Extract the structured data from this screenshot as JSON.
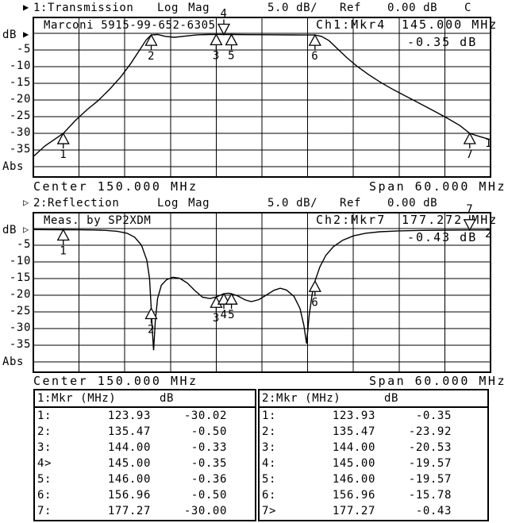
{
  "colors": {
    "foreground": "#000000",
    "background": "#ffffff"
  },
  "channel1": {
    "indicator": "▶",
    "title": "1:Transmission",
    "format": "Log Mag",
    "scale": "5.0 dB/",
    "ref_label": "Ref",
    "ref_value": "0.00 dB",
    "cal_flag": "C",
    "device_id": "Marconi 5915-99-652-6305",
    "readout_label": "Ch1:Mkr4",
    "readout_freq": "145.000 MHz",
    "readout_db": "-0.35 dB",
    "axis_unit": "dB",
    "axis_bottom": "Abs"
  },
  "channel2": {
    "indicator": "▷",
    "title": "2:Reflection",
    "format": "Log Mag",
    "scale": "5.0 dB/",
    "ref_label": "Ref",
    "ref_value": "0.00 dB",
    "device_id": "Meas. by SP2XDM",
    "readout_label": "Ch2:Mkr7",
    "readout_freq": "177.272 MHz",
    "readout_db": "-0.43 dB",
    "axis_unit": "dB",
    "axis_bottom": "Abs"
  },
  "frequency_row": {
    "center": "Center 150.000 MHz",
    "span": "Span 60.000 MHz"
  },
  "axis_ticks": [
    "-5",
    "-10",
    "-15",
    "-20",
    "-25",
    "-30",
    "-35"
  ],
  "chart_data": [
    {
      "type": "line",
      "name": "transmission",
      "title": "1:Transmission",
      "ylabel": "dB",
      "format": "Log Mag",
      "y_db_per_div": 5,
      "ref_db": 0,
      "ylim": [
        -40,
        0
      ],
      "x_mhz_range": [
        120,
        180
      ],
      "center_mhz": 150,
      "span_mhz": 60,
      "grid": true,
      "trace_number": "1",
      "trace": [
        [
          120,
          -37
        ],
        [
          121.5,
          -33.8
        ],
        [
          123.93,
          -30.02
        ],
        [
          125.5,
          -26.2
        ],
        [
          127,
          -23
        ],
        [
          128.5,
          -20.2
        ],
        [
          130,
          -16.8
        ],
        [
          131.5,
          -13
        ],
        [
          132.8,
          -9
        ],
        [
          134,
          -4.8
        ],
        [
          134.8,
          -2
        ],
        [
          135.47,
          -0.5
        ],
        [
          136.3,
          -0.35
        ],
        [
          137.3,
          -0.9
        ],
        [
          138.5,
          -1.2
        ],
        [
          140,
          -0.8
        ],
        [
          141.5,
          -0.45
        ],
        [
          143,
          -0.35
        ],
        [
          144,
          -0.33
        ],
        [
          145,
          -0.35
        ],
        [
          146,
          -0.36
        ],
        [
          148,
          -0.4
        ],
        [
          151,
          -0.44
        ],
        [
          154,
          -0.47
        ],
        [
          156.96,
          -0.5
        ],
        [
          157.8,
          -0.9
        ],
        [
          158.8,
          -2.2
        ],
        [
          160,
          -4.8
        ],
        [
          161.2,
          -7.4
        ],
        [
          162.5,
          -9.9
        ],
        [
          164,
          -12.4
        ],
        [
          165.5,
          -14.6
        ],
        [
          167,
          -16.6
        ],
        [
          168.5,
          -18.4
        ],
        [
          170,
          -20.2
        ],
        [
          171.5,
          -22
        ],
        [
          173,
          -23.8
        ],
        [
          174.5,
          -25.7
        ],
        [
          176,
          -27.7
        ],
        [
          177.27,
          -30
        ],
        [
          178.5,
          -30.9
        ],
        [
          180,
          -31.9
        ]
      ],
      "markers": [
        {
          "n": "1",
          "mhz": 123.93,
          "db": -30.02,
          "active": false
        },
        {
          "n": "2",
          "mhz": 135.47,
          "db": -0.5,
          "active": false
        },
        {
          "n": "3",
          "mhz": 144.0,
          "db": -0.33,
          "active": false
        },
        {
          "n": "4",
          "mhz": 145.0,
          "db": -0.35,
          "active": true
        },
        {
          "n": "5",
          "mhz": 146.0,
          "db": -0.36,
          "active": false
        },
        {
          "n": "6",
          "mhz": 156.96,
          "db": -0.5,
          "active": false
        },
        {
          "n": "7",
          "mhz": 177.27,
          "db": -30.0,
          "active": false
        }
      ]
    },
    {
      "type": "line",
      "name": "reflection",
      "title": "2:Reflection",
      "ylabel": "dB",
      "format": "Log Mag",
      "y_db_per_div": 5,
      "ref_db": 0,
      "ylim": [
        -40,
        0
      ],
      "x_mhz_range": [
        120,
        180
      ],
      "center_mhz": 150,
      "span_mhz": 60,
      "grid": true,
      "trace_number": "2",
      "trace": [
        [
          120,
          -0.32
        ],
        [
          122,
          -0.33
        ],
        [
          123.93,
          -0.35
        ],
        [
          126,
          -0.38
        ],
        [
          128,
          -0.44
        ],
        [
          129.5,
          -0.55
        ],
        [
          131,
          -0.8
        ],
        [
          132.3,
          -1.4
        ],
        [
          133.3,
          -2.6
        ],
        [
          134.2,
          -5
        ],
        [
          134.9,
          -9.5
        ],
        [
          135.25,
          -15
        ],
        [
          135.47,
          -23.92
        ],
        [
          135.6,
          -30
        ],
        [
          135.78,
          -36.5
        ],
        [
          136,
          -28
        ],
        [
          136.3,
          -21
        ],
        [
          136.8,
          -17
        ],
        [
          137.5,
          -15.3
        ],
        [
          138.3,
          -14.6
        ],
        [
          139.2,
          -14.9
        ],
        [
          140.2,
          -16.3
        ],
        [
          141.2,
          -18.6
        ],
        [
          142.2,
          -20.6
        ],
        [
          143.2,
          -21
        ],
        [
          144,
          -20.53
        ],
        [
          144.6,
          -19.9
        ],
        [
          145,
          -19.57
        ],
        [
          145.6,
          -19.4
        ],
        [
          146,
          -19.57
        ],
        [
          146.8,
          -20.2
        ],
        [
          147.8,
          -21.4
        ],
        [
          148.6,
          -21.9
        ],
        [
          149.6,
          -21.3
        ],
        [
          150.6,
          -19.9
        ],
        [
          151.6,
          -18.5
        ],
        [
          152.4,
          -17.9
        ],
        [
          153.2,
          -18.4
        ],
        [
          154.2,
          -20.3
        ],
        [
          155,
          -24
        ],
        [
          155.5,
          -29
        ],
        [
          155.85,
          -34.5
        ],
        [
          156.2,
          -26
        ],
        [
          156.6,
          -19.5
        ],
        [
          156.96,
          -15.78
        ],
        [
          157.6,
          -11.5
        ],
        [
          158.4,
          -8
        ],
        [
          159.4,
          -5.4
        ],
        [
          160.6,
          -3.5
        ],
        [
          162,
          -2.2
        ],
        [
          163.6,
          -1.4
        ],
        [
          165.5,
          -0.95
        ],
        [
          168,
          -0.7
        ],
        [
          171,
          -0.55
        ],
        [
          174,
          -0.48
        ],
        [
          177.27,
          -0.43
        ],
        [
          180,
          -0.42
        ]
      ],
      "markers": [
        {
          "n": "1",
          "mhz": 123.93,
          "db": -0.35,
          "active": false
        },
        {
          "n": "2",
          "mhz": 135.47,
          "db": -23.92,
          "active": false
        },
        {
          "n": "3",
          "mhz": 144.0,
          "db": -20.53,
          "active": false
        },
        {
          "n": "4",
          "mhz": 145.0,
          "db": -19.57,
          "active": false
        },
        {
          "n": "5",
          "mhz": 146.0,
          "db": -19.57,
          "active": false
        },
        {
          "n": "6",
          "mhz": 156.96,
          "db": -15.78,
          "active": false
        },
        {
          "n": "7",
          "mhz": 177.27,
          "db": -0.43,
          "active": true
        }
      ]
    }
  ],
  "marker_tables": [
    {
      "title": "1:Mkr (MHz)",
      "db_header": "dB",
      "rows": [
        [
          "1:",
          "123.93",
          "-30.02"
        ],
        [
          "2:",
          "135.47",
          "-0.50"
        ],
        [
          "3:",
          "144.00",
          "-0.33"
        ],
        [
          "4>",
          "145.00",
          "-0.35"
        ],
        [
          "5:",
          "146.00",
          "-0.36"
        ],
        [
          "6:",
          "156.96",
          "-0.50"
        ],
        [
          "7:",
          "177.27",
          "-30.00"
        ]
      ]
    },
    {
      "title": "2:Mkr (MHz)",
      "db_header": "dB",
      "rows": [
        [
          "1:",
          "123.93",
          "-0.35"
        ],
        [
          "2:",
          "135.47",
          "-23.92"
        ],
        [
          "3:",
          "144.00",
          "-20.53"
        ],
        [
          "4:",
          "145.00",
          "-19.57"
        ],
        [
          "5:",
          "146.00",
          "-19.57"
        ],
        [
          "6:",
          "156.96",
          "-15.78"
        ],
        [
          "7>",
          "177.27",
          "-0.43"
        ]
      ]
    }
  ]
}
